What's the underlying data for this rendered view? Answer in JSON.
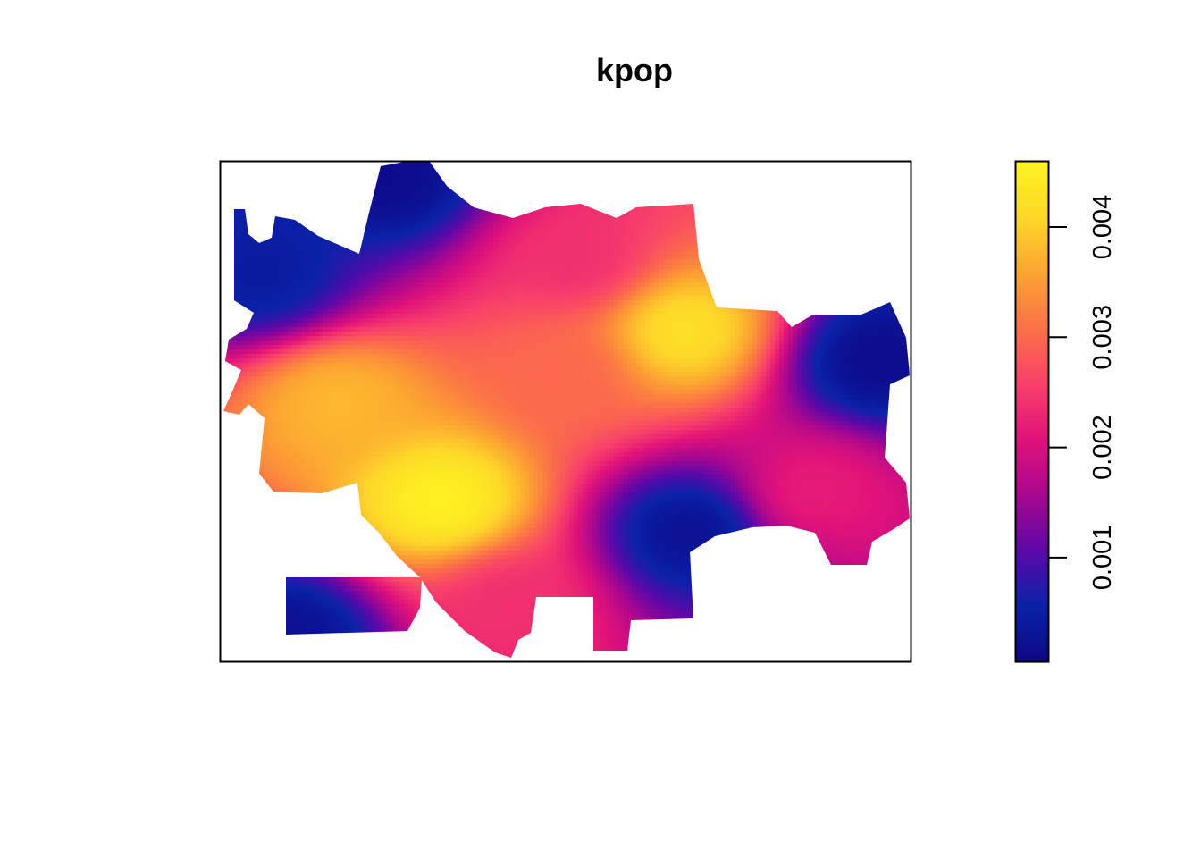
{
  "chart_data": {
    "type": "heatmap",
    "title": "kpop",
    "xlabel": "",
    "ylabel": "",
    "axes_drawn": false,
    "grid": false,
    "legend": {
      "type": "colorbar",
      "placement": "right",
      "range": [
        5e-05,
        0.0046
      ],
      "ticks": [
        0.001,
        0.002,
        0.003,
        0.004
      ],
      "tick_labels": [
        "0.001",
        "0.002",
        "0.003",
        "0.004"
      ],
      "label_orientation": "rotated-vertical"
    },
    "colormap": {
      "name": "plasma-like",
      "stops": [
        "#0d0887",
        "#0a22a8",
        "#5c08a8",
        "#a8078f",
        "#e0127a",
        "#f8406a",
        "#fb7048",
        "#fca332",
        "#fdd629",
        "#fef220"
      ]
    },
    "missing_color": "#ffffff",
    "hotspots": [
      {
        "x": 0.32,
        "y": 0.32,
        "value": 0.0046
      },
      {
        "x": 0.67,
        "y": 0.66,
        "value": 0.0043
      },
      {
        "x": 0.17,
        "y": 0.52,
        "value": 0.0038
      },
      {
        "x": 0.5,
        "y": 0.58,
        "value": 0.003
      },
      {
        "x": 0.52,
        "y": 0.8,
        "value": 0.0024
      },
      {
        "x": 0.86,
        "y": 0.34,
        "value": 0.0022
      },
      {
        "x": 0.42,
        "y": 0.12,
        "value": 0.0024
      }
    ],
    "coldspots": [
      {
        "x": 0.24,
        "y": 0.97,
        "value": 0.0001
      },
      {
        "x": 0.95,
        "y": 0.6,
        "value": 0.0001
      },
      {
        "x": 0.68,
        "y": 0.26,
        "value": 0.0002
      },
      {
        "x": 0.06,
        "y": 0.77,
        "value": 0.0004
      },
      {
        "x": 0.1,
        "y": 0.05,
        "value": 0.0002
      }
    ]
  }
}
